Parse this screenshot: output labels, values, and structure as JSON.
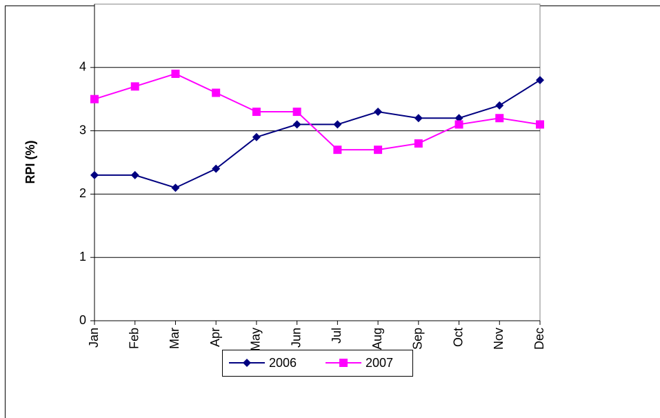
{
  "chart_data": {
    "type": "line",
    "ylabel": "RPI (%)",
    "categories": [
      "Jan",
      "Feb",
      "Mar",
      "Apr",
      "May",
      "Jun",
      "Jul",
      "Aug",
      "Sep",
      "Oct",
      "Nov",
      "Dec"
    ],
    "series": [
      {
        "name": "2006",
        "color": "#000080",
        "marker": "diamond",
        "values": [
          2.3,
          2.3,
          2.1,
          2.4,
          2.9,
          3.1,
          3.1,
          3.3,
          3.2,
          3.2,
          3.4,
          3.8
        ]
      },
      {
        "name": "2007",
        "color": "#ff00ff",
        "marker": "square",
        "values": [
          3.5,
          3.7,
          3.9,
          3.6,
          3.3,
          3.3,
          2.7,
          2.7,
          2.8,
          3.1,
          3.2,
          3.1
        ]
      }
    ],
    "ylim": [
      0,
      5
    ],
    "yticks": [
      0,
      1,
      2,
      3,
      4
    ],
    "grid": true,
    "legend": "bottom"
  }
}
